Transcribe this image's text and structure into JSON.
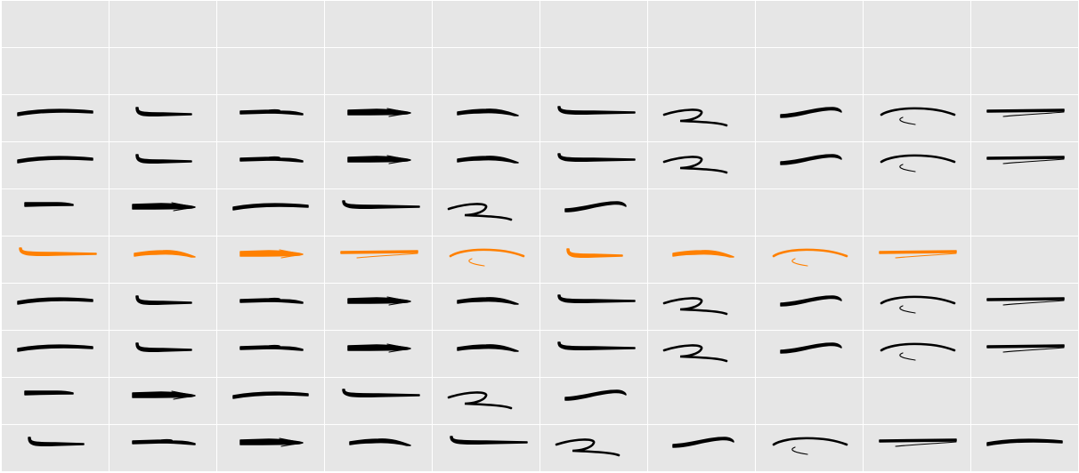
{
  "colors": {
    "cell_background": "#e6e6e6",
    "grid_line": "#ffffff",
    "glyph_default": "#000000",
    "glyph_highlight": "#ff8000"
  },
  "grid": {
    "columns": 10,
    "rows": [
      {
        "cells": [
          "empty",
          "empty",
          "empty",
          "empty",
          "empty",
          "empty",
          "empty",
          "empty",
          "empty",
          "empty"
        ]
      },
      {
        "cells": [
          "empty",
          "empty",
          "empty",
          "empty",
          "empty",
          "empty",
          "empty",
          "empty",
          "empty",
          "empty"
        ]
      },
      {
        "cells": [
          "brush-stroke-arc",
          "brush-stroke-flat",
          "brush-stroke-taper",
          "brush-stroke-arrow",
          "brush-stroke-split",
          "brush-stroke-long",
          "brush-stroke-zigzag",
          "brush-stroke-hook",
          "brush-stroke-loop",
          "brush-stroke-double"
        ]
      },
      {
        "cells": [
          "brush-stroke-arc",
          "brush-stroke-flat",
          "brush-stroke-taper",
          "brush-stroke-arrow",
          "brush-stroke-split",
          "brush-stroke-long",
          "brush-stroke-zigzag",
          "brush-stroke-hook",
          "brush-stroke-loop",
          "brush-stroke-double"
        ]
      },
      {
        "cells": [
          "brush-stroke-short",
          "brush-stroke-arrow",
          "brush-stroke-arc",
          "brush-stroke-long",
          "brush-stroke-zigzag",
          "brush-stroke-hook",
          "empty",
          "empty",
          "empty",
          "empty"
        ]
      },
      {
        "highlight": true,
        "cells": [
          "brush-stroke-long",
          "brush-stroke-split",
          "brush-stroke-arrow",
          "brush-stroke-double",
          "brush-stroke-loop",
          "brush-stroke-flat",
          "brush-stroke-split",
          "brush-stroke-loop",
          "brush-stroke-double",
          "empty"
        ]
      },
      {
        "cells": [
          "brush-stroke-arc",
          "brush-stroke-flat",
          "brush-stroke-taper",
          "brush-stroke-arrow",
          "brush-stroke-split",
          "brush-stroke-long",
          "brush-stroke-zigzag",
          "brush-stroke-hook",
          "brush-stroke-loop",
          "brush-stroke-double"
        ]
      },
      {
        "cells": [
          "brush-stroke-arc",
          "brush-stroke-flat",
          "brush-stroke-taper",
          "brush-stroke-arrow",
          "brush-stroke-split",
          "brush-stroke-long",
          "brush-stroke-zigzag",
          "brush-stroke-hook",
          "brush-stroke-loop",
          "brush-stroke-double"
        ]
      },
      {
        "cells": [
          "brush-stroke-short",
          "brush-stroke-arrow",
          "brush-stroke-arc",
          "brush-stroke-long",
          "brush-stroke-zigzag",
          "brush-stroke-hook",
          "empty",
          "empty",
          "empty",
          "empty"
        ]
      },
      {
        "cells": [
          "brush-stroke-flat",
          "brush-stroke-taper",
          "brush-stroke-arrow",
          "brush-stroke-split",
          "brush-stroke-long",
          "brush-stroke-zigzag",
          "brush-stroke-hook",
          "brush-stroke-loop",
          "brush-stroke-double",
          "brush-stroke-arc"
        ]
      }
    ]
  }
}
